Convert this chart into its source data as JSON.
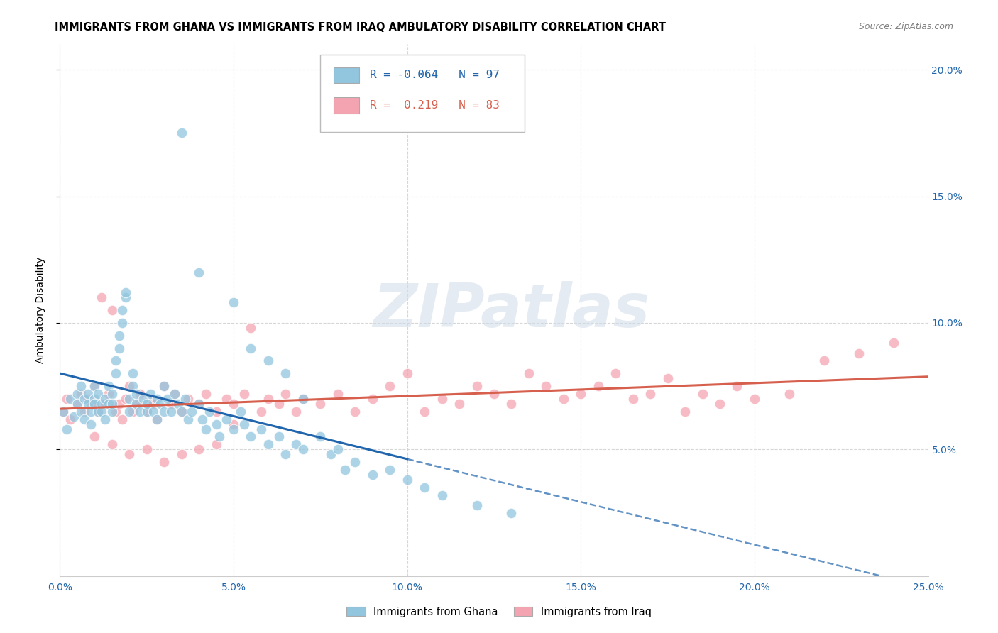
{
  "title": "IMMIGRANTS FROM GHANA VS IMMIGRANTS FROM IRAQ AMBULATORY DISABILITY CORRELATION CHART",
  "source": "Source: ZipAtlas.com",
  "ylabel": "Ambulatory Disability",
  "xlim": [
    0.0,
    0.25
  ],
  "ylim": [
    0.0,
    0.21
  ],
  "yticks": [
    0.05,
    0.1,
    0.15,
    0.2
  ],
  "ytick_labels": [
    "5.0%",
    "10.0%",
    "15.0%",
    "20.0%"
  ],
  "xticks": [
    0.0,
    0.05,
    0.1,
    0.15,
    0.2,
    0.25
  ],
  "xtick_labels": [
    "0.0%",
    "5.0%",
    "10.0%",
    "15.0%",
    "20.0%",
    "25.0%"
  ],
  "ghana_color": "#92c5de",
  "iraq_color": "#f4a4b0",
  "ghana_line_color": "#2166ac",
  "iraq_line_color": "#d6604d",
  "ghana_R": -0.064,
  "ghana_N": 97,
  "iraq_R": 0.219,
  "iraq_N": 83,
  "watermark": "ZIPatlas",
  "ghana_scatter_x": [
    0.001,
    0.002,
    0.003,
    0.004,
    0.005,
    0.005,
    0.006,
    0.006,
    0.007,
    0.007,
    0.008,
    0.008,
    0.009,
    0.009,
    0.01,
    0.01,
    0.01,
    0.011,
    0.011,
    0.012,
    0.012,
    0.013,
    0.013,
    0.014,
    0.014,
    0.015,
    0.015,
    0.015,
    0.016,
    0.016,
    0.017,
    0.017,
    0.018,
    0.018,
    0.019,
    0.019,
    0.02,
    0.02,
    0.021,
    0.021,
    0.022,
    0.022,
    0.023,
    0.024,
    0.025,
    0.025,
    0.026,
    0.027,
    0.028,
    0.028,
    0.029,
    0.03,
    0.03,
    0.031,
    0.032,
    0.033,
    0.034,
    0.035,
    0.036,
    0.037,
    0.038,
    0.04,
    0.041,
    0.042,
    0.043,
    0.045,
    0.046,
    0.048,
    0.05,
    0.052,
    0.053,
    0.055,
    0.058,
    0.06,
    0.063,
    0.065,
    0.068,
    0.07,
    0.075,
    0.078,
    0.08,
    0.082,
    0.085,
    0.09,
    0.095,
    0.1,
    0.105,
    0.11,
    0.12,
    0.13,
    0.035,
    0.04,
    0.05,
    0.055,
    0.06,
    0.065,
    0.07
  ],
  "ghana_scatter_y": [
    0.065,
    0.058,
    0.07,
    0.063,
    0.072,
    0.068,
    0.065,
    0.075,
    0.062,
    0.07,
    0.068,
    0.072,
    0.065,
    0.06,
    0.07,
    0.075,
    0.068,
    0.065,
    0.072,
    0.068,
    0.065,
    0.07,
    0.062,
    0.075,
    0.068,
    0.072,
    0.065,
    0.068,
    0.08,
    0.085,
    0.09,
    0.095,
    0.1,
    0.105,
    0.11,
    0.112,
    0.065,
    0.07,
    0.075,
    0.08,
    0.068,
    0.072,
    0.065,
    0.07,
    0.065,
    0.068,
    0.072,
    0.065,
    0.07,
    0.062,
    0.068,
    0.065,
    0.075,
    0.07,
    0.065,
    0.072,
    0.068,
    0.065,
    0.07,
    0.062,
    0.065,
    0.068,
    0.062,
    0.058,
    0.065,
    0.06,
    0.055,
    0.062,
    0.058,
    0.065,
    0.06,
    0.055,
    0.058,
    0.052,
    0.055,
    0.048,
    0.052,
    0.05,
    0.055,
    0.048,
    0.05,
    0.042,
    0.045,
    0.04,
    0.042,
    0.038,
    0.035,
    0.032,
    0.028,
    0.025,
    0.175,
    0.12,
    0.108,
    0.09,
    0.085,
    0.08,
    0.07
  ],
  "iraq_scatter_x": [
    0.001,
    0.002,
    0.003,
    0.005,
    0.006,
    0.007,
    0.008,
    0.009,
    0.01,
    0.011,
    0.012,
    0.013,
    0.014,
    0.015,
    0.016,
    0.017,
    0.018,
    0.019,
    0.02,
    0.021,
    0.022,
    0.023,
    0.025,
    0.026,
    0.027,
    0.028,
    0.03,
    0.032,
    0.033,
    0.035,
    0.037,
    0.04,
    0.042,
    0.045,
    0.048,
    0.05,
    0.053,
    0.055,
    0.058,
    0.06,
    0.063,
    0.065,
    0.068,
    0.07,
    0.075,
    0.08,
    0.085,
    0.09,
    0.095,
    0.1,
    0.105,
    0.11,
    0.115,
    0.12,
    0.125,
    0.13,
    0.135,
    0.14,
    0.145,
    0.15,
    0.155,
    0.16,
    0.165,
    0.17,
    0.175,
    0.18,
    0.185,
    0.19,
    0.195,
    0.2,
    0.21,
    0.22,
    0.23,
    0.24,
    0.01,
    0.015,
    0.02,
    0.025,
    0.03,
    0.035,
    0.04,
    0.045,
    0.05
  ],
  "iraq_scatter_y": [
    0.065,
    0.07,
    0.062,
    0.068,
    0.072,
    0.065,
    0.07,
    0.068,
    0.075,
    0.065,
    0.11,
    0.068,
    0.072,
    0.105,
    0.065,
    0.068,
    0.062,
    0.07,
    0.075,
    0.065,
    0.068,
    0.072,
    0.065,
    0.07,
    0.068,
    0.062,
    0.075,
    0.068,
    0.072,
    0.065,
    0.07,
    0.068,
    0.072,
    0.065,
    0.07,
    0.068,
    0.072,
    0.098,
    0.065,
    0.07,
    0.068,
    0.072,
    0.065,
    0.07,
    0.068,
    0.072,
    0.065,
    0.07,
    0.075,
    0.08,
    0.065,
    0.07,
    0.068,
    0.075,
    0.072,
    0.068,
    0.08,
    0.075,
    0.07,
    0.072,
    0.075,
    0.08,
    0.07,
    0.072,
    0.078,
    0.065,
    0.072,
    0.068,
    0.075,
    0.07,
    0.072,
    0.085,
    0.088,
    0.092,
    0.055,
    0.052,
    0.048,
    0.05,
    0.045,
    0.048,
    0.05,
    0.052,
    0.06
  ]
}
